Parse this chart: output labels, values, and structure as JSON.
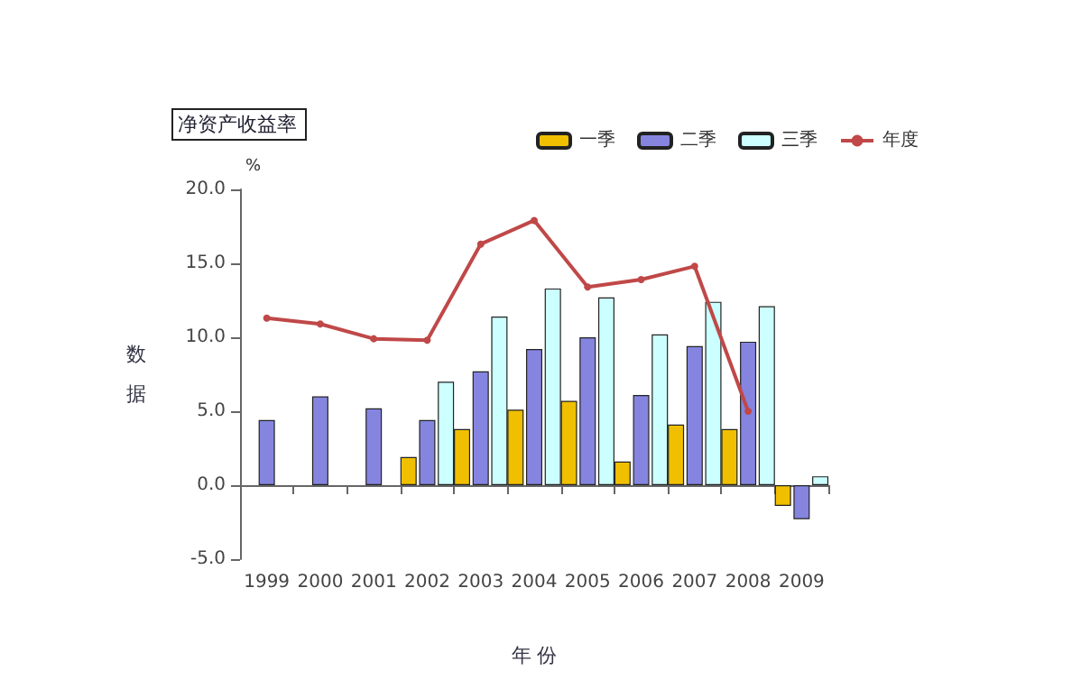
{
  "chart_data": {
    "type": "bar",
    "title": "净资产收益率",
    "xlabel": "年 份",
    "ylabel": "数据",
    "annotations": [
      "%"
    ],
    "categories": [
      "1999",
      "2000",
      "2001",
      "2002",
      "2003",
      "2004",
      "2005",
      "2006",
      "2007",
      "2008",
      "2009"
    ],
    "series": [
      {
        "name": "一季",
        "color": "#f0c000",
        "values": [
          null,
          null,
          null,
          1.9,
          3.8,
          5.1,
          5.7,
          1.6,
          4.1,
          3.8,
          -1.4
        ]
      },
      {
        "name": "二季",
        "color": "#8585e0",
        "values": [
          4.4,
          6.0,
          5.2,
          4.4,
          7.7,
          9.2,
          10.0,
          6.1,
          9.4,
          9.7,
          -2.3
        ]
      },
      {
        "name": "三季",
        "color": "#ccffff",
        "values": [
          null,
          null,
          null,
          7.0,
          11.4,
          13.3,
          12.7,
          10.2,
          12.4,
          12.1,
          0.6
        ]
      },
      {
        "name": "年度",
        "type": "line",
        "color": "#c04848",
        "values": [
          11.3,
          10.9,
          9.9,
          9.8,
          16.3,
          17.9,
          13.4,
          13.9,
          14.8,
          5.0,
          null
        ]
      }
    ],
    "ylim": [
      -5,
      20
    ],
    "yticks": [
      {
        "value": -5,
        "label": "-5.0"
      },
      {
        "value": 0,
        "label": "0.0"
      },
      {
        "value": 5,
        "label": "5.0"
      },
      {
        "value": 10,
        "label": "10.0"
      },
      {
        "value": 15,
        "label": "15.0"
      },
      {
        "value": 20,
        "label": "20.0"
      }
    ],
    "legend": "top right",
    "marker": "circle",
    "line_style": "solid"
  }
}
